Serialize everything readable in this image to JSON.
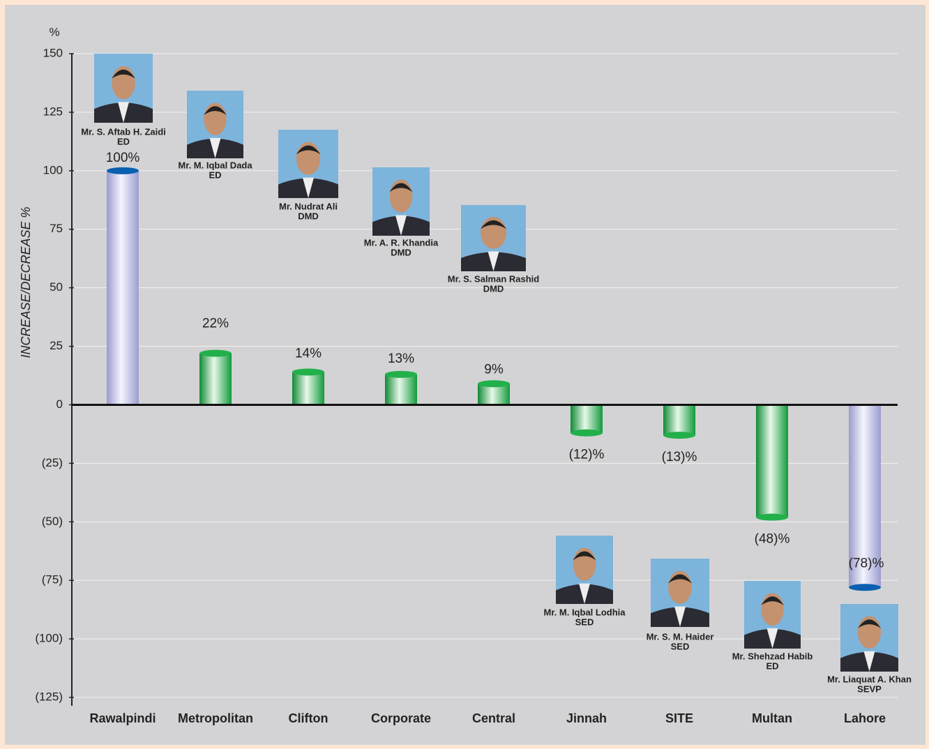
{
  "chart_data": {
    "type": "bar",
    "axis_unit": "%",
    "y_label": "INCREASE/DECREASE %",
    "categories": [
      "Rawalpindi",
      "Metropolitan",
      "Clifton",
      "Corporate",
      "Central",
      "Jinnah",
      "SITE",
      "Multan",
      "Lahore"
    ],
    "values": [
      100,
      22,
      14,
      13,
      9,
      -12,
      -13,
      -48,
      -78
    ],
    "value_labels": [
      "100%",
      "22%",
      "14%",
      "13%",
      "9%",
      "(12)%",
      "(13)%",
      "(48)%",
      "(78)%"
    ],
    "colors": [
      "#b4b4e0",
      "#22b04a",
      "#22b04a",
      "#22b04a",
      "#22b04a",
      "#22b04a",
      "#22b04a",
      "#22b04a",
      "#b4b4e0"
    ],
    "people": [
      {
        "name": "Mr. S. Aftab H. Zaidi",
        "role": "ED"
      },
      {
        "name": "Mr. M. Iqbal Dada",
        "role": "ED"
      },
      {
        "name": "Mr. Nudrat Ali",
        "role": "DMD"
      },
      {
        "name": "Mr. A. R. Khandia",
        "role": "DMD"
      },
      {
        "name": "Mr. S. Salman Rashid",
        "role": "DMD"
      },
      {
        "name": "Mr. M. Iqbal Lodhia",
        "role": "SED"
      },
      {
        "name": "Mr. S. M. Haider",
        "role": "SED"
      },
      {
        "name": "Mr. Shehzad Habib",
        "role": "ED"
      },
      {
        "name": "Mr. Liaquat A. Khan",
        "role": "SEVP"
      }
    ],
    "ylim": [
      -125,
      150
    ],
    "yticks": [
      150,
      125,
      100,
      75,
      50,
      25,
      0,
      {
        "value": -25,
        "label": "(25)"
      },
      {
        "value": -50,
        "label": "(50)"
      },
      {
        "value": -75,
        "label": "(75)"
      },
      {
        "value": -100,
        "label": "(100)"
      },
      {
        "value": -125,
        "label": "(125)"
      }
    ],
    "grid": true
  }
}
